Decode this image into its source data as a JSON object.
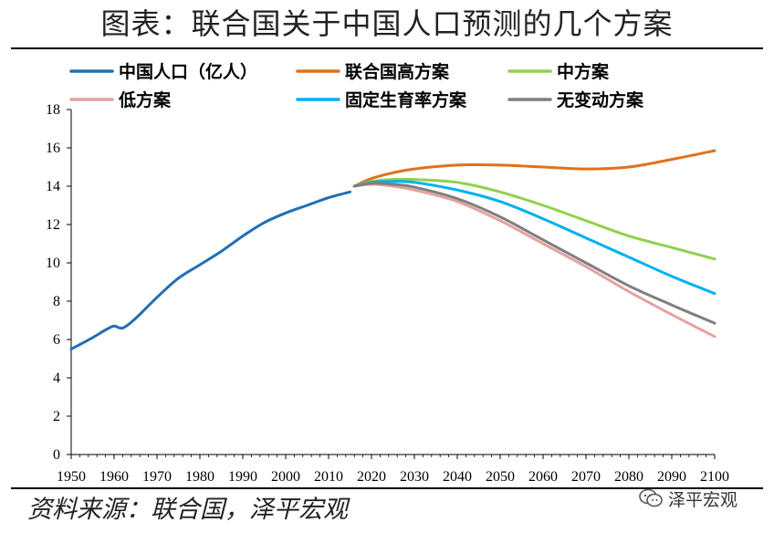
{
  "title": "图表：联合国关于中国人口预测的几个方案",
  "source": "资料来源：联合国，泽平宏观",
  "watermark": {
    "text": "泽平宏观",
    "icon": "wechat-icon"
  },
  "chart_data": {
    "type": "line",
    "title": "图表：联合国关于中国人口预测的几个方案",
    "xlabel": "",
    "ylabel": "",
    "xlim": [
      1950,
      2100
    ],
    "ylim": [
      0,
      18
    ],
    "xticks": [
      1950,
      1960,
      1970,
      1980,
      1990,
      2000,
      2010,
      2020,
      2030,
      2040,
      2050,
      2060,
      2070,
      2080,
      2090,
      2100
    ],
    "yticks": [
      0,
      2,
      4,
      6,
      8,
      10,
      12,
      14,
      16,
      18
    ],
    "grid": false,
    "legend": "top",
    "series": [
      {
        "name": "中国人口（亿人）",
        "color": "#1f6fb4",
        "x": [
          1950,
          1955,
          1958,
          1960,
          1962,
          1965,
          1970,
          1975,
          1980,
          1985,
          1990,
          1995,
          2000,
          2005,
          2010,
          2015
        ],
        "values": [
          5.5,
          6.1,
          6.5,
          6.7,
          6.6,
          7.1,
          8.2,
          9.2,
          9.9,
          10.6,
          11.4,
          12.1,
          12.6,
          13.0,
          13.4,
          13.7
        ]
      },
      {
        "name": "联合国高方案",
        "color": "#e0711c",
        "x": [
          2016,
          2020,
          2025,
          2030,
          2040,
          2050,
          2060,
          2070,
          2080,
          2090,
          2100
        ],
        "values": [
          14.0,
          14.4,
          14.7,
          14.9,
          15.1,
          15.1,
          15.0,
          14.9,
          15.0,
          15.4,
          15.85
        ]
      },
      {
        "name": "中方案",
        "color": "#92d050",
        "x": [
          2016,
          2020,
          2025,
          2030,
          2040,
          2050,
          2060,
          2070,
          2080,
          2090,
          2100
        ],
        "values": [
          14.0,
          14.25,
          14.35,
          14.35,
          14.2,
          13.7,
          13.0,
          12.2,
          11.4,
          10.8,
          10.2
        ]
      },
      {
        "name": "低方案",
        "color": "#e6a0a0",
        "x": [
          2016,
          2020,
          2025,
          2030,
          2040,
          2050,
          2060,
          2070,
          2080,
          2090,
          2100
        ],
        "values": [
          14.0,
          14.1,
          14.0,
          13.8,
          13.2,
          12.2,
          11.0,
          9.8,
          8.5,
          7.3,
          6.15
        ]
      },
      {
        "name": "固定生育率方案",
        "color": "#00b0f0",
        "x": [
          2016,
          2020,
          2025,
          2030,
          2040,
          2050,
          2060,
          2070,
          2080,
          2090,
          2100
        ],
        "values": [
          14.0,
          14.2,
          14.25,
          14.2,
          13.8,
          13.2,
          12.3,
          11.3,
          10.3,
          9.3,
          8.4
        ]
      },
      {
        "name": "无变动方案",
        "color": "#7f7f7f",
        "x": [
          2016,
          2020,
          2025,
          2030,
          2040,
          2050,
          2060,
          2070,
          2080,
          2090,
          2100
        ],
        "values": [
          14.0,
          14.15,
          14.1,
          13.95,
          13.35,
          12.4,
          11.2,
          10.0,
          8.8,
          7.8,
          6.85
        ]
      }
    ]
  }
}
